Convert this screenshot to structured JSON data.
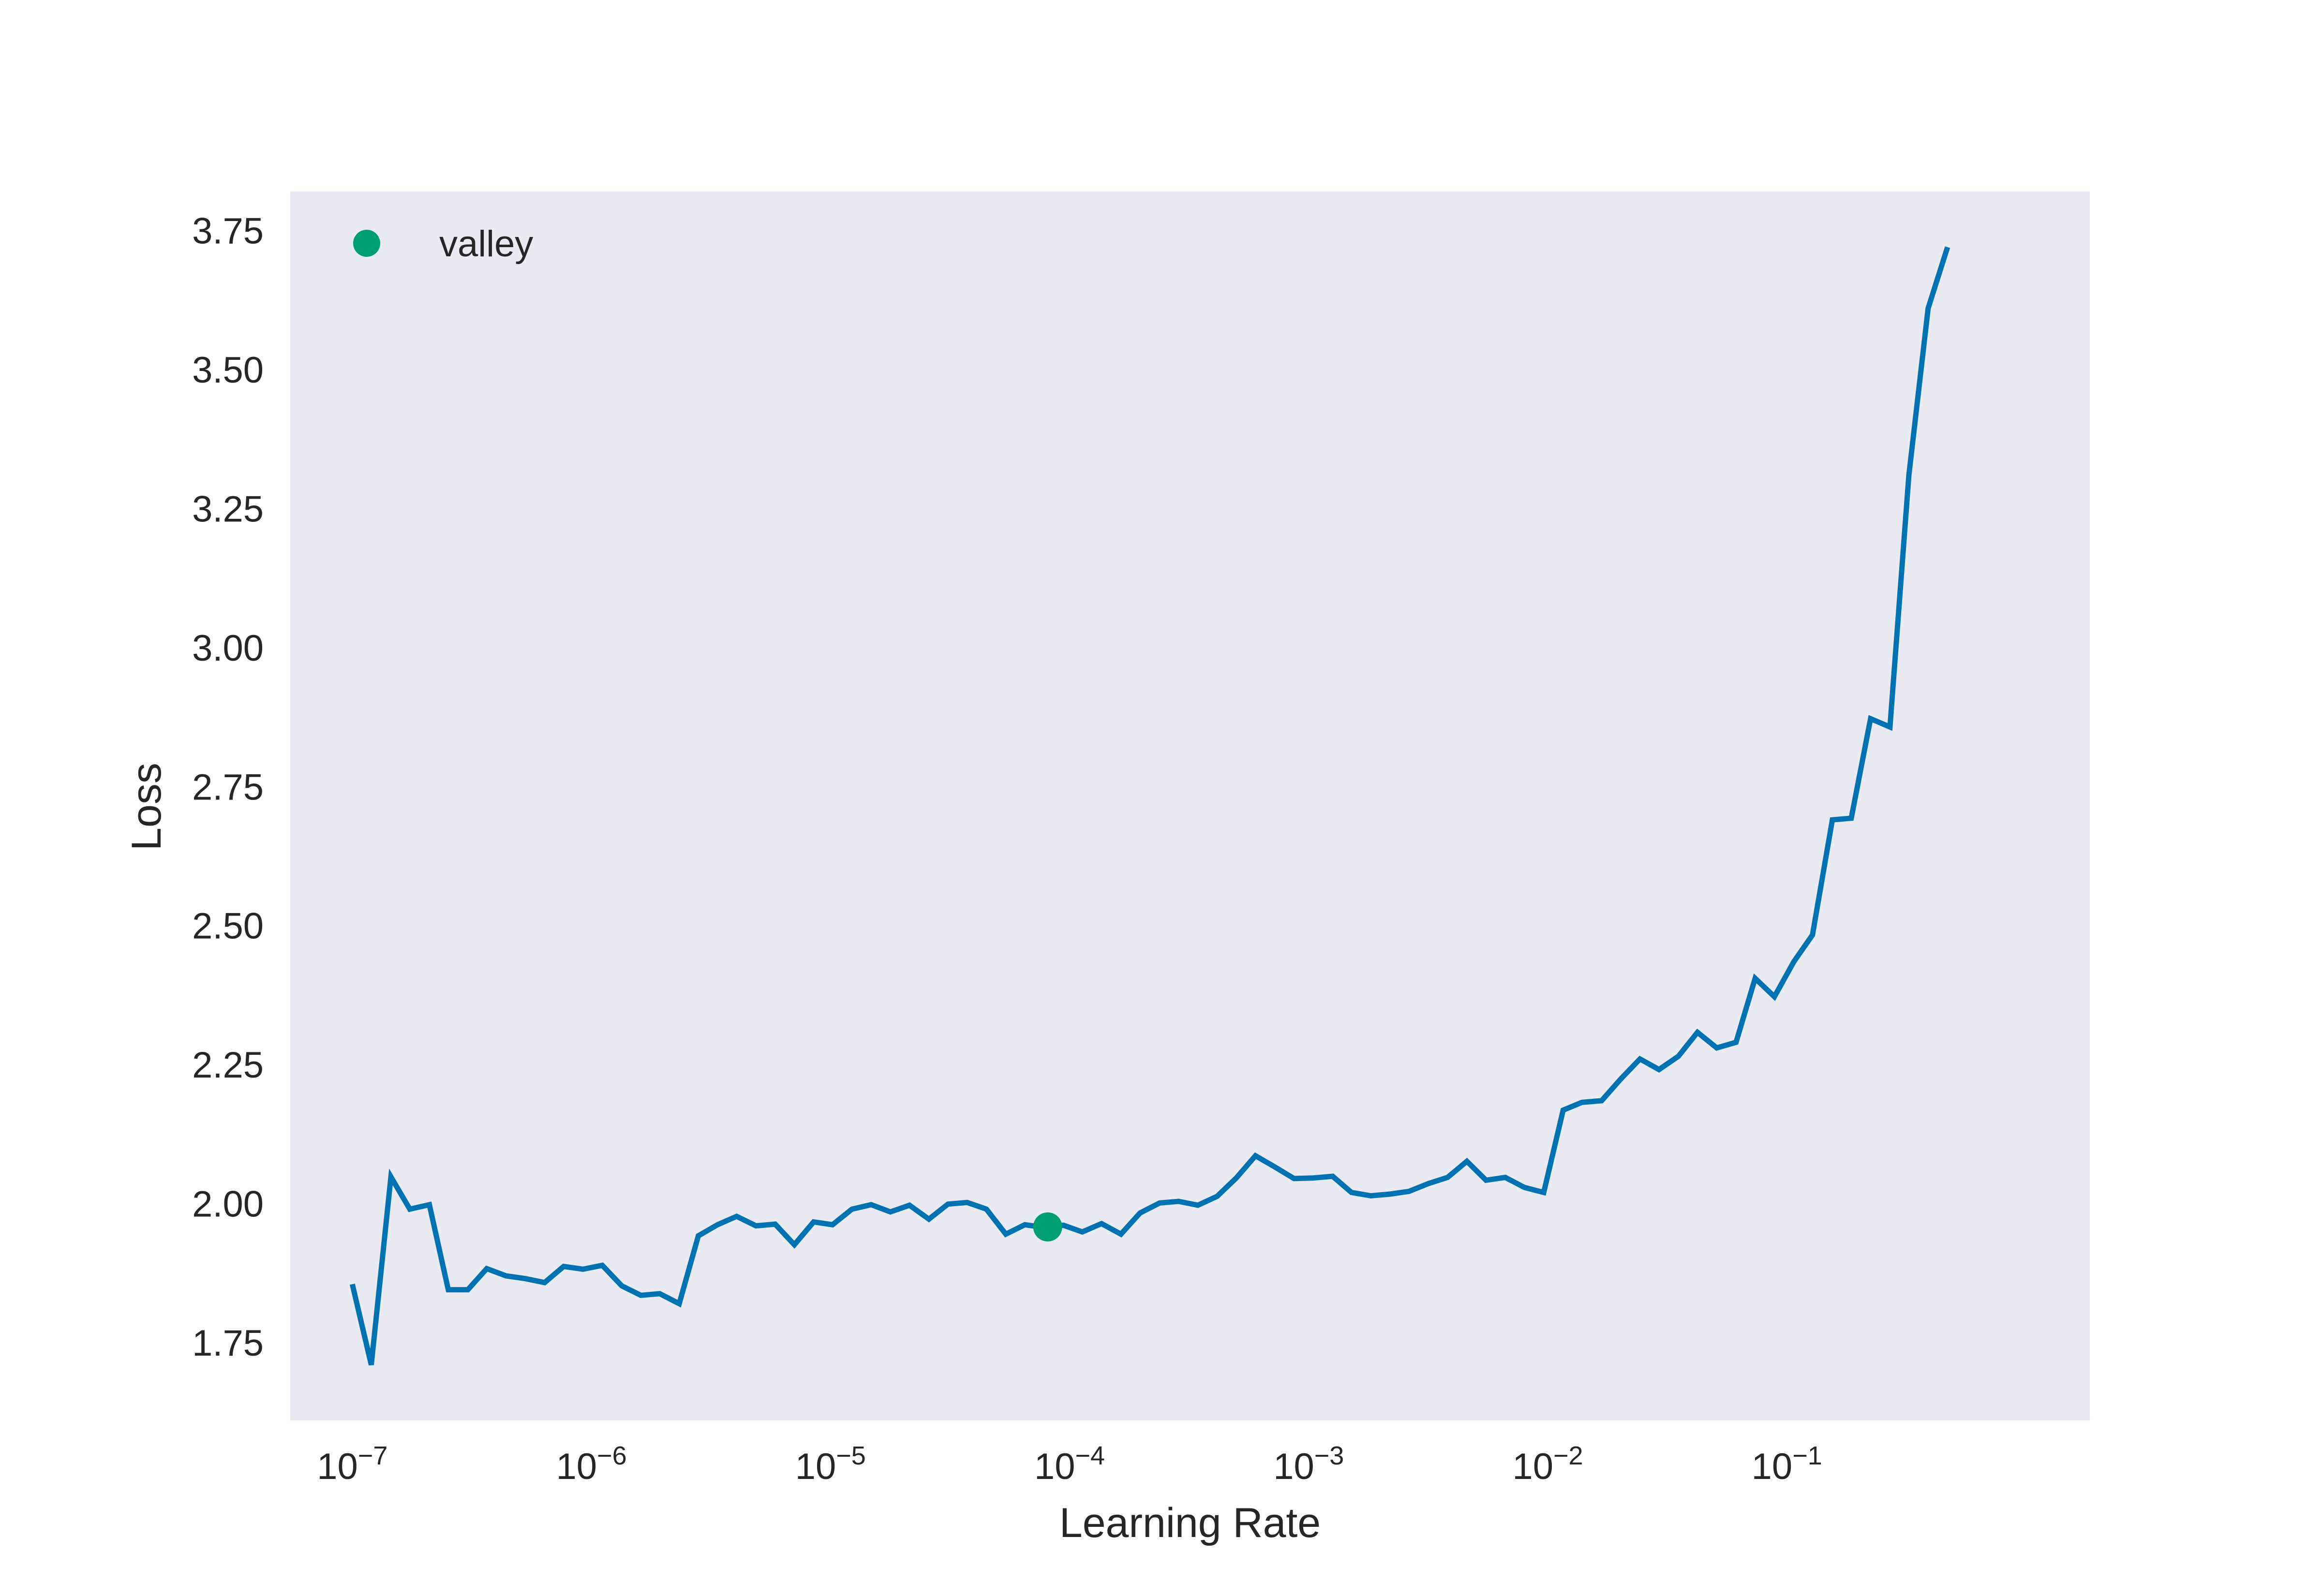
{
  "chart_data": {
    "type": "line",
    "title": "",
    "xlabel": "Learning Rate",
    "ylabel": "Loss",
    "xscale": "log",
    "xlim": [
      5.5e-08,
      1.85
    ],
    "ylim": [
      1.61,
      3.82
    ],
    "grid": false,
    "legend": {
      "placement": "top-left",
      "entries": [
        {
          "name": "valley",
          "marker": "circle"
        }
      ]
    },
    "colors": {
      "line": "#0072b2",
      "marker": "#009e73",
      "plot_bg": "#eaeaf2",
      "text": "#262626"
    },
    "x_ticks": [
      {
        "base": "10",
        "exp": "−7",
        "value": 1e-07
      },
      {
        "base": "10",
        "exp": "−6",
        "value": 1e-06
      },
      {
        "base": "10",
        "exp": "−5",
        "value": 1e-05
      },
      {
        "base": "10",
        "exp": "−4",
        "value": 0.0001
      },
      {
        "base": "10",
        "exp": "−3",
        "value": 0.001
      },
      {
        "base": "10",
        "exp": "−2",
        "value": 0.01
      },
      {
        "base": "10",
        "exp": "−1",
        "value": 0.1
      }
    ],
    "y_ticks": [
      {
        "label": "1.75",
        "value": 1.75
      },
      {
        "label": "2.00",
        "value": 2.0
      },
      {
        "label": "2.25",
        "value": 2.25
      },
      {
        "label": "2.50",
        "value": 2.5
      },
      {
        "label": "2.75",
        "value": 2.75
      },
      {
        "label": "3.00",
        "value": 3.0
      },
      {
        "label": "3.25",
        "value": 3.25
      },
      {
        "label": "3.50",
        "value": 3.5
      },
      {
        "label": "3.75",
        "value": 3.75
      }
    ],
    "series": [
      {
        "name": "",
        "x": [
          1e-07,
          1.2e-07,
          1.45e-07,
          1.74e-07,
          2.1e-07,
          2.52e-07,
          3.04e-07,
          3.65e-07,
          4.4e-07,
          5.3e-07,
          6.37e-07,
          7.66e-07,
          9.22e-07,
          1.11e-06,
          1.34e-06,
          1.61e-06,
          1.93e-06,
          2.33e-06,
          2.8e-06,
          3.37e-06,
          4.05e-06,
          4.88e-06,
          5.87e-06,
          7.06e-06,
          8.5e-06,
          1.02e-05,
          1.23e-05,
          1.48e-05,
          1.78e-05,
          2.14e-05,
          2.58e-05,
          3.1e-05,
          3.73e-05,
          4.49e-05,
          5.41e-05,
          6.5e-05,
          7.83e-05,
          9.42e-05,
          0.000113,
          0.000136,
          0.000164,
          0.000197,
          0.000238,
          0.000286,
          0.000344,
          0.000414,
          0.000498,
          0.000599,
          0.000721,
          0.000868,
          0.00104,
          0.00126,
          0.00151,
          0.00182,
          0.00219,
          0.00263,
          0.00317,
          0.00381,
          0.00459,
          0.00552,
          0.00664,
          0.00799,
          0.00962,
          0.0116,
          0.0139,
          0.0168,
          0.0202,
          0.0243,
          0.0292,
          0.0352,
          0.0423,
          0.0509,
          0.0613,
          0.0737,
          0.0887,
          0.107,
          0.128,
          0.155,
          0.186,
          0.224,
          0.27,
          0.324,
          0.39,
          0.47
        ],
        "y": [
          1.855,
          1.71,
          2.048,
          1.99,
          1.998,
          1.845,
          1.845,
          1.883,
          1.87,
          1.865,
          1.858,
          1.887,
          1.882,
          1.889,
          1.852,
          1.835,
          1.838,
          1.82,
          1.942,
          1.962,
          1.977,
          1.96,
          1.963,
          1.926,
          1.967,
          1.962,
          1.99,
          1.998,
          1.985,
          1.997,
          1.972,
          1.999,
          2.002,
          1.99,
          1.945,
          1.962,
          1.957,
          1.961,
          1.949,
          1.964,
          1.945,
          1.983,
          2.001,
          2.004,
          1.997,
          2.013,
          2.046,
          2.086,
          2.066,
          2.045,
          2.046,
          2.049,
          2.02,
          2.014,
          2.017,
          2.022,
          2.036,
          2.047,
          2.076,
          2.042,
          2.047,
          2.029,
          2.02,
          2.168,
          2.182,
          2.185,
          2.224,
          2.26,
          2.241,
          2.265,
          2.308,
          2.28,
          2.29,
          2.405,
          2.372,
          2.435,
          2.483,
          2.69,
          2.693,
          2.872,
          2.857,
          3.31,
          3.61,
          3.72
        ]
      }
    ],
    "points": [
      {
        "name": "valley",
        "x": 8.1e-05,
        "y": 1.958
      }
    ]
  }
}
